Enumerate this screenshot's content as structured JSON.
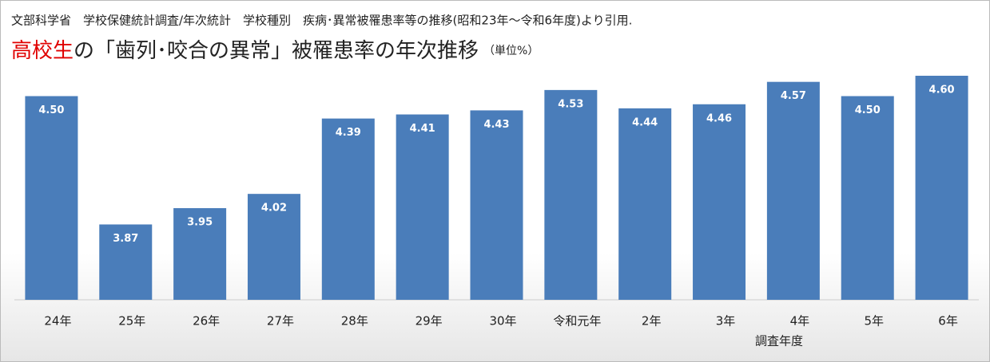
{
  "chart_data": {
    "type": "bar",
    "source": "文部科学省　学校保健統計調査/年次統計　学校種別　疾病･異常被罹患率等の推移(昭和23年～令和6年度)より引用.",
    "title_highlight": "高校生",
    "title": "の「歯列･咬合の異常」被罹患率の年次推移",
    "unit": "（単位%）",
    "x_label": "調査年度",
    "categories": [
      "24年",
      "25年",
      "26年",
      "27年",
      "28年",
      "29年",
      "30年",
      "令和元年",
      "2年",
      "3年",
      "4年",
      "5年",
      "6年"
    ],
    "values": [
      4.5,
      3.87,
      3.95,
      4.02,
      4.39,
      4.41,
      4.43,
      4.53,
      4.44,
      4.46,
      4.57,
      4.5,
      4.6
    ],
    "value_labels": [
      "4.50",
      "3.87",
      "3.95",
      "4.02",
      "4.39",
      "4.41",
      "4.43",
      "4.53",
      "4.44",
      "4.46",
      "4.57",
      "4.50",
      "4.60"
    ],
    "color": "#4a7dba",
    "highlight_color": "#e00000",
    "ylim": [
      3.5,
      4.6
    ]
  }
}
